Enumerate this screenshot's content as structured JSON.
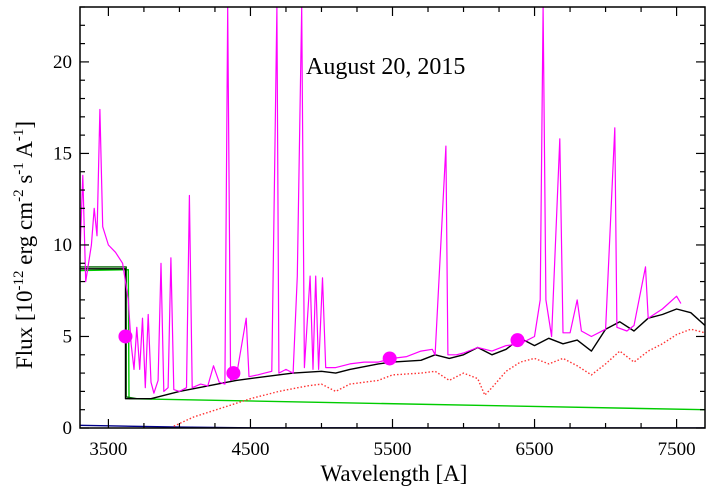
{
  "chart_data": {
    "type": "line",
    "title": "",
    "annotation": "August 20, 2015",
    "xlabel": "Wavelength [A]",
    "ylabel": {
      "prefix": "Flux [10",
      "exp1": "-12",
      "mid1": " erg cm",
      "exp2": "-2",
      "mid2": " s",
      "exp3": "-1",
      "mid3": " A",
      "exp4": "-1",
      "suffix": "]"
    },
    "xlim": [
      3300,
      7700
    ],
    "ylim": [
      0,
      23
    ],
    "xticks": [
      3500,
      4500,
      5500,
      6500,
      7500
    ],
    "yticks": [
      0,
      5,
      10,
      15,
      20
    ],
    "colors": {
      "observed": "#ff00ff",
      "model_total": "#000000",
      "stellar_component": "#ff3333",
      "continuum": "#00cc00",
      "continuum_dark": "#006600",
      "baseline": "#000088",
      "photometry": "#ff00ff"
    },
    "photometry": [
      {
        "x": 3620,
        "y": 5.0
      },
      {
        "x": 4380,
        "y": 3.0
      },
      {
        "x": 5480,
        "y": 3.8
      },
      {
        "x": 6380,
        "y": 4.8
      }
    ],
    "series": [
      {
        "key": "continuum",
        "style": "solid",
        "points": [
          [
            3300,
            8.6
          ],
          [
            3640,
            8.65
          ],
          [
            3645,
            1.6
          ],
          [
            7700,
            1.0
          ]
        ]
      },
      {
        "key": "continuum_dark",
        "style": "solid",
        "points": [
          [
            3300,
            8.8
          ],
          [
            3625,
            8.8
          ],
          [
            3625,
            1.7
          ],
          [
            3700,
            1.6
          ]
        ]
      },
      {
        "key": "baseline",
        "style": "solid",
        "points": [
          [
            3300,
            0.15
          ],
          [
            4000,
            0.05
          ],
          [
            4500,
            0.01
          ],
          [
            7700,
            0.0
          ]
        ]
      },
      {
        "key": "stellar_component",
        "style": "dotted",
        "points": [
          [
            3960,
            0.1
          ],
          [
            4100,
            0.6
          ],
          [
            4300,
            1.1
          ],
          [
            4500,
            1.6
          ],
          [
            4700,
            2.0
          ],
          [
            4900,
            2.3
          ],
          [
            5000,
            2.4
          ],
          [
            5100,
            2.0
          ],
          [
            5200,
            2.4
          ],
          [
            5400,
            2.6
          ],
          [
            5500,
            2.9
          ],
          [
            5700,
            3.0
          ],
          [
            5800,
            3.1
          ],
          [
            5900,
            2.6
          ],
          [
            6000,
            3.0
          ],
          [
            6100,
            2.7
          ],
          [
            6150,
            1.8
          ],
          [
            6200,
            2.2
          ],
          [
            6300,
            3.1
          ],
          [
            6400,
            3.6
          ],
          [
            6500,
            3.8
          ],
          [
            6600,
            3.5
          ],
          [
            6700,
            3.8
          ],
          [
            6800,
            3.4
          ],
          [
            6900,
            2.9
          ],
          [
            7000,
            3.5
          ],
          [
            7100,
            4.2
          ],
          [
            7200,
            3.6
          ],
          [
            7300,
            4.2
          ],
          [
            7400,
            4.6
          ],
          [
            7500,
            5.1
          ],
          [
            7600,
            5.4
          ],
          [
            7700,
            5.2
          ]
        ]
      },
      {
        "key": "model_total",
        "style": "solid",
        "points": [
          [
            3300,
            8.7
          ],
          [
            3620,
            8.7
          ],
          [
            3620,
            1.6
          ],
          [
            3800,
            1.6
          ],
          [
            4000,
            2.0
          ],
          [
            4200,
            2.3
          ],
          [
            4400,
            2.6
          ],
          [
            4600,
            2.8
          ],
          [
            4800,
            3.0
          ],
          [
            5000,
            3.1
          ],
          [
            5100,
            3.0
          ],
          [
            5200,
            3.2
          ],
          [
            5400,
            3.5
          ],
          [
            5500,
            3.6
          ],
          [
            5700,
            3.7
          ],
          [
            5800,
            4.0
          ],
          [
            5900,
            3.8
          ],
          [
            6000,
            4.0
          ],
          [
            6100,
            4.4
          ],
          [
            6200,
            4.0
          ],
          [
            6300,
            4.3
          ],
          [
            6400,
            4.9
          ],
          [
            6500,
            4.5
          ],
          [
            6600,
            4.9
          ],
          [
            6700,
            4.6
          ],
          [
            6800,
            4.8
          ],
          [
            6900,
            4.2
          ],
          [
            7000,
            5.4
          ],
          [
            7100,
            5.8
          ],
          [
            7200,
            5.3
          ],
          [
            7300,
            6.0
          ],
          [
            7400,
            6.2
          ],
          [
            7500,
            6.5
          ],
          [
            7600,
            6.3
          ],
          [
            7700,
            5.6
          ]
        ]
      },
      {
        "key": "observed",
        "style": "solid",
        "points": [
          [
            3300,
            9.5
          ],
          [
            3320,
            13.8
          ],
          [
            3340,
            8.0
          ],
          [
            3380,
            10.0
          ],
          [
            3400,
            12.0
          ],
          [
            3420,
            10.5
          ],
          [
            3440,
            17.4
          ],
          [
            3460,
            11.0
          ],
          [
            3500,
            10.0
          ],
          [
            3550,
            9.6
          ],
          [
            3600,
            9.0
          ],
          [
            3640,
            7.0
          ],
          [
            3660,
            4.6
          ],
          [
            3680,
            3.2
          ],
          [
            3700,
            5.5
          ],
          [
            3720,
            3.2
          ],
          [
            3740,
            6.0
          ],
          [
            3760,
            2.2
          ],
          [
            3780,
            6.2
          ],
          [
            3800,
            2.5
          ],
          [
            3820,
            1.9
          ],
          [
            3850,
            2.6
          ],
          [
            3870,
            9.0
          ],
          [
            3890,
            2.0
          ],
          [
            3920,
            2.2
          ],
          [
            3940,
            9.3
          ],
          [
            3960,
            2.1
          ],
          [
            4000,
            2.0
          ],
          [
            4050,
            2.2
          ],
          [
            4070,
            12.7
          ],
          [
            4090,
            2.2
          ],
          [
            4150,
            2.4
          ],
          [
            4200,
            2.3
          ],
          [
            4240,
            3.4
          ],
          [
            4280,
            2.5
          ],
          [
            4320,
            2.4
          ],
          [
            4340,
            23.0
          ],
          [
            4360,
            2.6
          ],
          [
            4400,
            2.8
          ],
          [
            4470,
            6.0
          ],
          [
            4490,
            2.8
          ],
          [
            4550,
            2.9
          ],
          [
            4600,
            3.0
          ],
          [
            4650,
            3.1
          ],
          [
            4686,
            23.0
          ],
          [
            4700,
            3.0
          ],
          [
            4750,
            3.2
          ],
          [
            4800,
            3.0
          ],
          [
            4830,
            8.3
          ],
          [
            4861,
            23.0
          ],
          [
            4880,
            3.3
          ],
          [
            4920,
            8.3
          ],
          [
            4940,
            3.2
          ],
          [
            4959,
            8.3
          ],
          [
            4980,
            3.2
          ],
          [
            5007,
            8.2
          ],
          [
            5030,
            3.3
          ],
          [
            5100,
            3.3
          ],
          [
            5200,
            3.5
          ],
          [
            5300,
            3.6
          ],
          [
            5400,
            3.6
          ],
          [
            5500,
            3.8
          ],
          [
            5600,
            3.9
          ],
          [
            5700,
            4.2
          ],
          [
            5780,
            4.3
          ],
          [
            5800,
            4.0
          ],
          [
            5876,
            15.4
          ],
          [
            5890,
            4.0
          ],
          [
            5950,
            4.0
          ],
          [
            6000,
            4.1
          ],
          [
            6100,
            4.4
          ],
          [
            6200,
            4.2
          ],
          [
            6300,
            4.5
          ],
          [
            6400,
            4.6
          ],
          [
            6500,
            5.0
          ],
          [
            6540,
            7.0
          ],
          [
            6560,
            23.0
          ],
          [
            6580,
            7.0
          ],
          [
            6620,
            5.0
          ],
          [
            6678,
            15.8
          ],
          [
            6700,
            5.2
          ],
          [
            6750,
            5.2
          ],
          [
            6800,
            7.0
          ],
          [
            6830,
            5.3
          ],
          [
            6900,
            5.0
          ],
          [
            7000,
            5.4
          ],
          [
            7065,
            16.4
          ],
          [
            7080,
            5.5
          ],
          [
            7150,
            5.3
          ],
          [
            7200,
            5.6
          ],
          [
            7281,
            8.8
          ],
          [
            7300,
            6.0
          ],
          [
            7400,
            6.5
          ],
          [
            7500,
            7.2
          ],
          [
            7530,
            6.8
          ]
        ]
      }
    ]
  }
}
